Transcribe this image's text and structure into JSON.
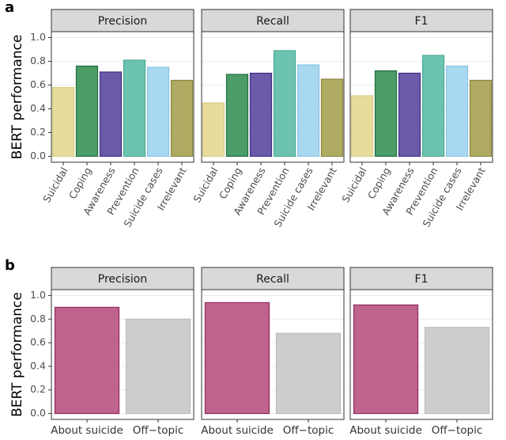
{
  "chart_data": [
    {
      "type": "bar",
      "panel_label": "a",
      "ylabel": "BERT performance",
      "categories": [
        "Suicidal",
        "Coping",
        "Awareness",
        "Prevention",
        "Suicide cases",
        "Irrelevant"
      ],
      "colors": [
        "#e8dc9c",
        "#4c9c68",
        "#6a5aa8",
        "#6cc4b0",
        "#a9d9f0",
        "#b0ab62"
      ],
      "borders": [
        "#d8cc88",
        "#1f6e3c",
        "#3e2f88",
        "#4aa896",
        "#88c4e4",
        "#8a8640"
      ],
      "facets": [
        {
          "title": "Precision",
          "values": [
            0.58,
            0.76,
            0.71,
            0.81,
            0.75,
            0.64
          ]
        },
        {
          "title": "Recall",
          "values": [
            0.45,
            0.69,
            0.7,
            0.89,
            0.77,
            0.65
          ]
        },
        {
          "title": "F1",
          "values": [
            0.51,
            0.72,
            0.7,
            0.85,
            0.76,
            0.64
          ]
        }
      ],
      "ylim": [
        -0.05,
        1.05
      ],
      "yticks": [
        {
          "value": 0,
          "label": "0.0"
        },
        0.2,
        0.4,
        0.6,
        0.8,
        {
          "value": 1,
          "label": "1.0"
        }
      ],
      "grid": true
    },
    {
      "type": "bar",
      "panel_label": "b",
      "ylabel": "BERT performance",
      "categories": [
        "About suicide",
        "Off−topic"
      ],
      "colors": [
        "#c0648e",
        "#cdcdcd"
      ],
      "borders": [
        "#8e2a5c",
        "#bdbdbd"
      ],
      "facets": [
        {
          "title": "Precision",
          "values": [
            0.9,
            0.8
          ]
        },
        {
          "title": "Recall",
          "values": [
            0.94,
            0.68
          ]
        },
        {
          "title": "F1",
          "values": [
            0.92,
            0.73
          ]
        }
      ],
      "ylim": [
        -0.05,
        1.05
      ],
      "yticks": [
        {
          "value": 0,
          "label": "0.0"
        },
        0.2,
        0.4,
        0.6,
        0.8,
        {
          "value": 1,
          "label": "1.0"
        }
      ],
      "grid": true
    }
  ]
}
